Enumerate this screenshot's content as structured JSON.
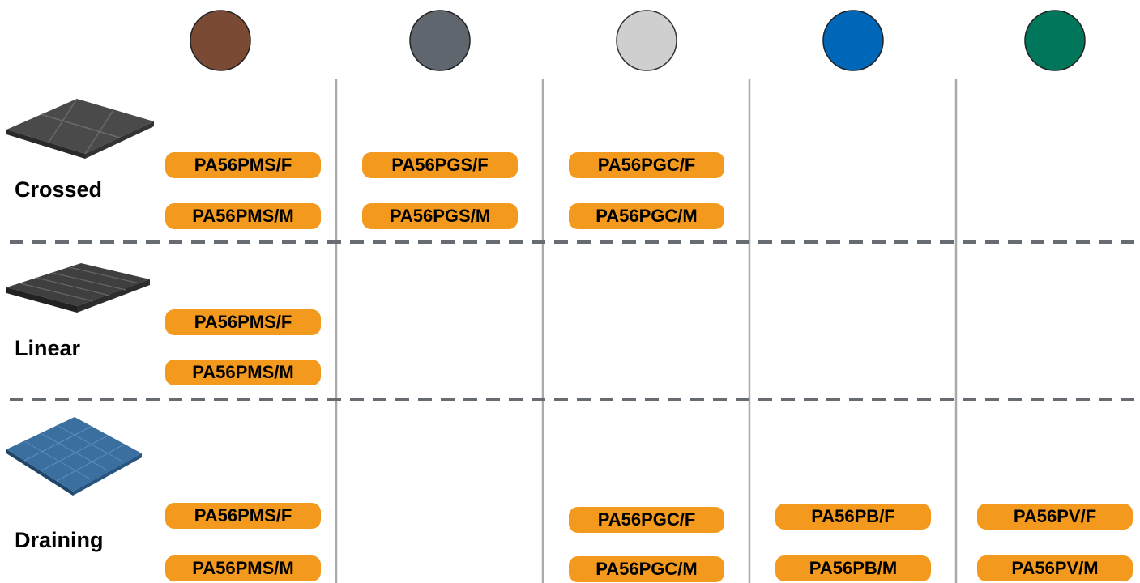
{
  "rows": [
    {
      "label": "Crossed",
      "codes": [
        [
          "PA56PMS/F",
          "PA56PMS/M"
        ],
        [
          "PA56PGS/F",
          "PA56PGS/M"
        ],
        [
          "PA56PGC/F",
          "PA56PGC/M"
        ],
        [],
        []
      ]
    },
    {
      "label": "Linear",
      "codes": [
        [
          "PA56PMS/F",
          "PA56PMS/M"
        ],
        [],
        [],
        [],
        []
      ]
    },
    {
      "label": "Draining",
      "codes": [
        [
          "PA56PMS/F",
          "PA56PMS/M"
        ],
        [],
        [
          "PA56PGC/F",
          "PA56PGC/M"
        ],
        [
          "PA56PB/F",
          "PA56PB/M"
        ],
        [
          "PA56PV/F",
          "PA56PV/M"
        ]
      ]
    }
  ]
}
